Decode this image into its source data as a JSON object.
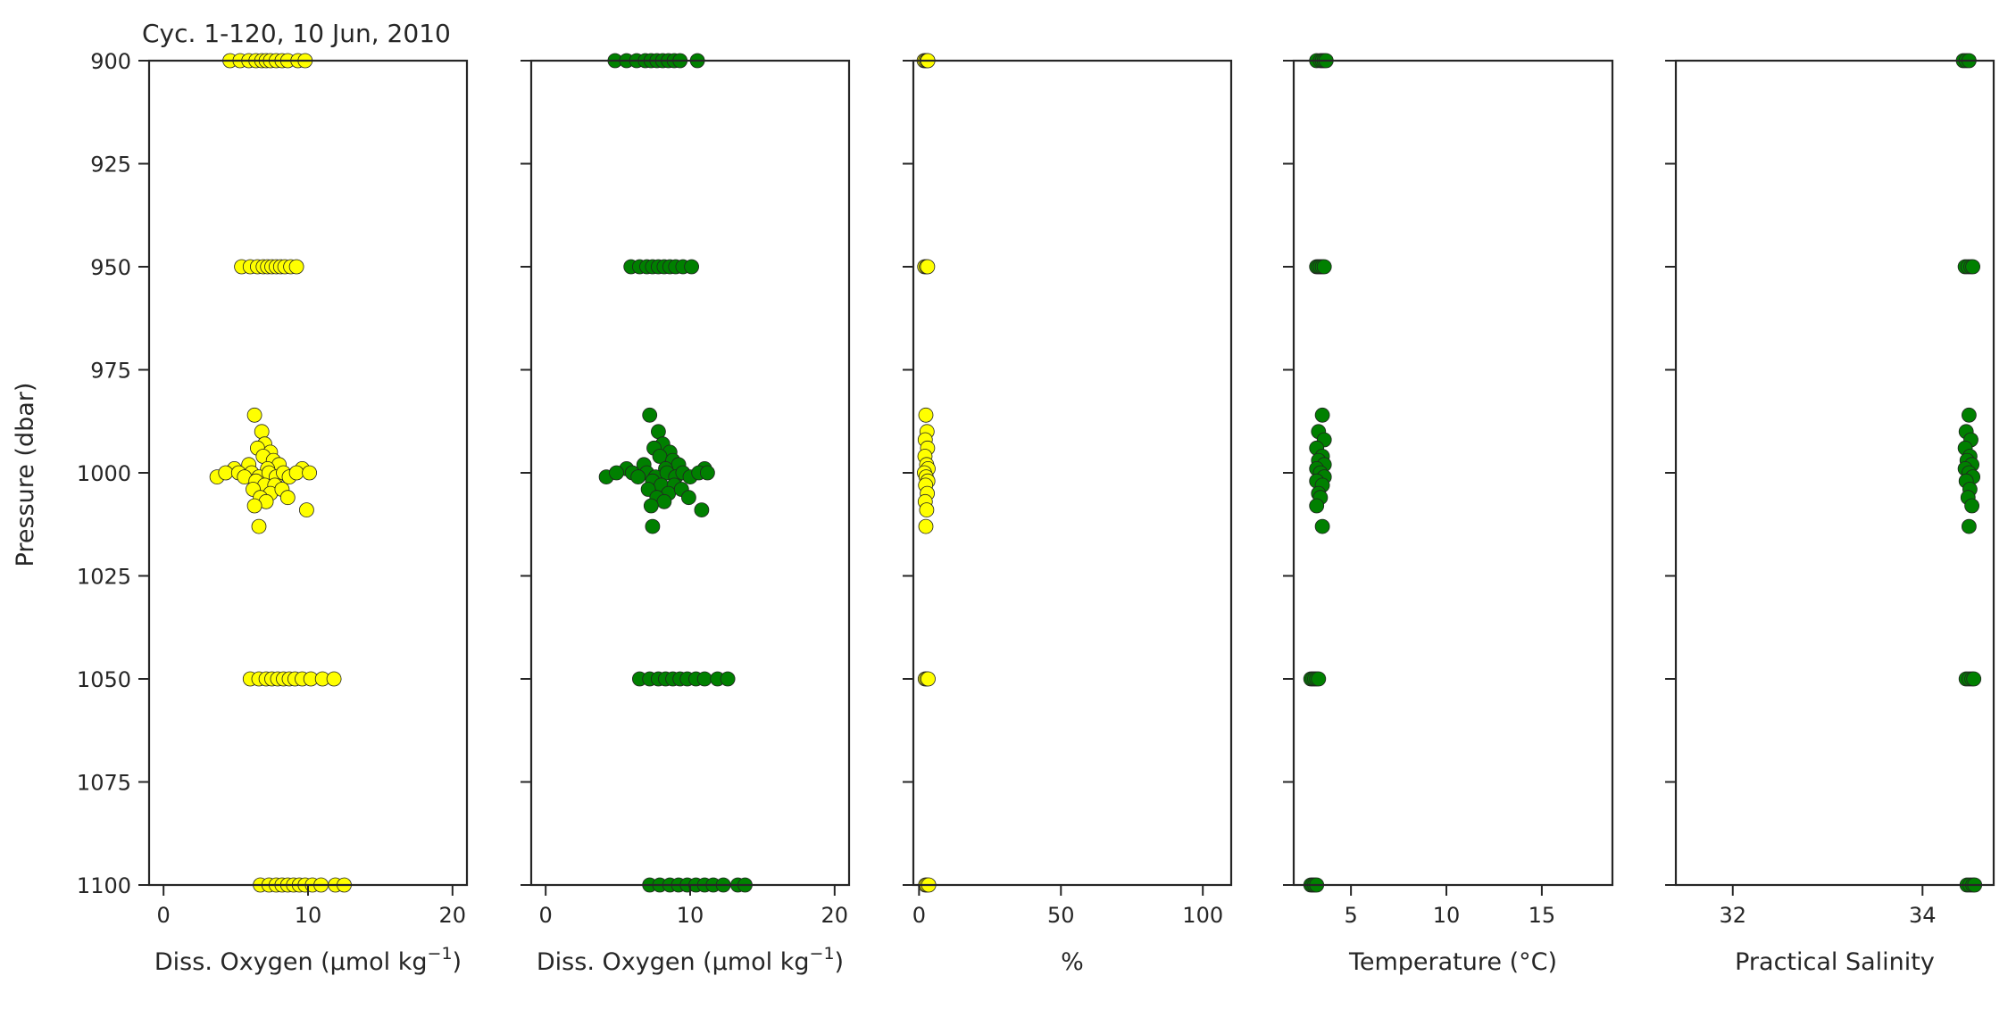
{
  "chart_data": {
    "type": "scatter",
    "title": "Cyc. 1-120, 10 Jun, 2010",
    "shared_y": {
      "label": "Pressure (dbar)",
      "lim": [
        900,
        1100
      ],
      "inverted": true,
      "ticks": [
        900,
        925,
        950,
        975,
        1000,
        1025,
        1050,
        1075,
        1100
      ]
    },
    "colors": {
      "yellow": "#ffff00",
      "green": "#008000",
      "edge": "#222222",
      "axis": "#262626"
    },
    "panels": [
      {
        "id": "doxy_raw",
        "xlabel": "Diss. Oxygen (μmol kg",
        "xlabel_sup": "−1",
        "xlabel_close": ")",
        "xlim": [
          -1,
          21
        ],
        "xticks": [
          0,
          10,
          20
        ],
        "tick_labels": [
          "0",
          "10",
          "20"
        ],
        "color": "yellow",
        "clusters": [
          {
            "p": 900,
            "x": [
              4.6,
              5.3,
              5.9,
              6.4,
              6.8,
              7.1,
              7.4,
              7.8,
              8.2,
              8.6,
              9.3,
              9.8
            ]
          },
          {
            "p": 950,
            "x": [
              5.4,
              6.0,
              6.5,
              6.9,
              7.2,
              7.5,
              7.8,
              8.1,
              8.4,
              8.8,
              9.2
            ]
          },
          {
            "p": 1050,
            "x": [
              6.0,
              6.6,
              7.1,
              7.5,
              7.9,
              8.3,
              8.7,
              9.1,
              9.6,
              10.2,
              11.0,
              11.8
            ]
          },
          {
            "p": 1100,
            "x": [
              6.7,
              7.3,
              7.8,
              8.2,
              8.6,
              9.0,
              9.4,
              9.8,
              10.3,
              10.9,
              11.9,
              12.5
            ]
          }
        ],
        "points": [
          {
            "x": 6.3,
            "p": 986
          },
          {
            "x": 6.8,
            "p": 990
          },
          {
            "x": 7.0,
            "p": 993
          },
          {
            "x": 6.5,
            "p": 994
          },
          {
            "x": 7.4,
            "p": 995
          },
          {
            "x": 6.9,
            "p": 996
          },
          {
            "x": 7.6,
            "p": 997
          },
          {
            "x": 8.0,
            "p": 998
          },
          {
            "x": 5.9,
            "p": 998
          },
          {
            "x": 7.2,
            "p": 999
          },
          {
            "x": 4.9,
            "p": 999
          },
          {
            "x": 9.6,
            "p": 999
          },
          {
            "x": 3.7,
            "p": 1001
          },
          {
            "x": 4.3,
            "p": 1000
          },
          {
            "x": 5.2,
            "p": 1000
          },
          {
            "x": 6.1,
            "p": 1000
          },
          {
            "x": 6.6,
            "p": 1001
          },
          {
            "x": 7.3,
            "p": 1000
          },
          {
            "x": 7.8,
            "p": 1001
          },
          {
            "x": 8.3,
            "p": 1000
          },
          {
            "x": 8.7,
            "p": 1001
          },
          {
            "x": 9.2,
            "p": 1000
          },
          {
            "x": 10.1,
            "p": 1000
          },
          {
            "x": 5.6,
            "p": 1001
          },
          {
            "x": 6.4,
            "p": 1002
          },
          {
            "x": 7.0,
            "p": 1003
          },
          {
            "x": 7.7,
            "p": 1003
          },
          {
            "x": 6.2,
            "p": 1004
          },
          {
            "x": 7.4,
            "p": 1005
          },
          {
            "x": 8.2,
            "p": 1004
          },
          {
            "x": 6.7,
            "p": 1006
          },
          {
            "x": 7.1,
            "p": 1007
          },
          {
            "x": 8.6,
            "p": 1006
          },
          {
            "x": 6.3,
            "p": 1008
          },
          {
            "x": 9.9,
            "p": 1009
          },
          {
            "x": 6.6,
            "p": 1013
          }
        ]
      },
      {
        "id": "doxy_adjusted",
        "xlabel": "Diss. Oxygen (μmol kg",
        "xlabel_sup": "−1",
        "xlabel_close": ")",
        "xlim": [
          -1,
          21
        ],
        "xticks": [
          0,
          10,
          20
        ],
        "tick_labels": [
          "0",
          "10",
          "20"
        ],
        "color": "green",
        "clusters": [
          {
            "p": 900,
            "x": [
              4.8,
              5.6,
              6.3,
              6.9,
              7.3,
              7.7,
              8.1,
              8.5,
              8.9,
              9.3,
              10.5
            ]
          },
          {
            "p": 950,
            "x": [
              5.9,
              6.5,
              7.0,
              7.4,
              7.8,
              8.2,
              8.6,
              9.0,
              9.5,
              10.1
            ]
          },
          {
            "p": 1050,
            "x": [
              6.5,
              7.2,
              7.8,
              8.3,
              8.8,
              9.3,
              9.8,
              10.4,
              11.0,
              11.9,
              12.6
            ]
          },
          {
            "p": 1100,
            "x": [
              7.2,
              7.9,
              8.6,
              9.2,
              9.8,
              10.4,
              11.0,
              11.6,
              12.3,
              13.3,
              13.8
            ]
          }
        ],
        "points": [
          {
            "x": 7.2,
            "p": 986
          },
          {
            "x": 7.8,
            "p": 990
          },
          {
            "x": 8.1,
            "p": 993
          },
          {
            "x": 7.5,
            "p": 994
          },
          {
            "x": 8.6,
            "p": 995
          },
          {
            "x": 7.9,
            "p": 996
          },
          {
            "x": 8.8,
            "p": 997
          },
          {
            "x": 9.2,
            "p": 998
          },
          {
            "x": 6.8,
            "p": 998
          },
          {
            "x": 8.3,
            "p": 999
          },
          {
            "x": 5.6,
            "p": 999
          },
          {
            "x": 11.0,
            "p": 999
          },
          {
            "x": 4.2,
            "p": 1001
          },
          {
            "x": 4.9,
            "p": 1000
          },
          {
            "x": 6.0,
            "p": 1000
          },
          {
            "x": 7.0,
            "p": 1000
          },
          {
            "x": 7.6,
            "p": 1001
          },
          {
            "x": 8.4,
            "p": 1000
          },
          {
            "x": 9.0,
            "p": 1001
          },
          {
            "x": 9.5,
            "p": 1000
          },
          {
            "x": 10.0,
            "p": 1001
          },
          {
            "x": 10.6,
            "p": 1000
          },
          {
            "x": 11.2,
            "p": 1000
          },
          {
            "x": 6.4,
            "p": 1001
          },
          {
            "x": 7.4,
            "p": 1002
          },
          {
            "x": 8.0,
            "p": 1003
          },
          {
            "x": 8.9,
            "p": 1003
          },
          {
            "x": 7.1,
            "p": 1004
          },
          {
            "x": 8.5,
            "p": 1005
          },
          {
            "x": 9.4,
            "p": 1004
          },
          {
            "x": 7.7,
            "p": 1006
          },
          {
            "x": 8.2,
            "p": 1007
          },
          {
            "x": 9.9,
            "p": 1006
          },
          {
            "x": 7.3,
            "p": 1008
          },
          {
            "x": 10.8,
            "p": 1009
          },
          {
            "x": 7.4,
            "p": 1013
          }
        ]
      },
      {
        "id": "oxygen_saturation",
        "xlabel": "%",
        "xlim": [
          -2,
          110
        ],
        "xticks": [
          0,
          50,
          100
        ],
        "tick_labels": [
          "0",
          "50",
          "100"
        ],
        "color": "yellow",
        "clusters": [
          {
            "p": 900,
            "x": [
              1.8,
              2.3,
              2.8,
              3.1
            ]
          },
          {
            "p": 950,
            "x": [
              2.0,
              2.6,
              3.0
            ]
          },
          {
            "p": 1050,
            "x": [
              2.2,
              2.7,
              3.2
            ]
          },
          {
            "p": 1100,
            "x": [
              2.3,
              2.8,
              3.4
            ]
          }
        ],
        "points": [
          {
            "x": 2.4,
            "p": 986
          },
          {
            "x": 2.8,
            "p": 990
          },
          {
            "x": 2.2,
            "p": 992
          },
          {
            "x": 3.0,
            "p": 994
          },
          {
            "x": 2.1,
            "p": 996
          },
          {
            "x": 2.7,
            "p": 998
          },
          {
            "x": 3.2,
            "p": 999
          },
          {
            "x": 1.9,
            "p": 1000
          },
          {
            "x": 2.5,
            "p": 1001
          },
          {
            "x": 3.1,
            "p": 1002
          },
          {
            "x": 2.3,
            "p": 1003
          },
          {
            "x": 2.9,
            "p": 1005
          },
          {
            "x": 2.2,
            "p": 1007
          },
          {
            "x": 2.7,
            "p": 1009
          },
          {
            "x": 2.4,
            "p": 1013
          }
        ]
      },
      {
        "id": "temperature",
        "xlabel": "Temperature (°C)",
        "xlim": [
          2,
          18.7
        ],
        "xticks": [
          5,
          10,
          15
        ],
        "tick_labels": [
          "5",
          "10",
          "15"
        ],
        "color": "green",
        "clusters": [
          {
            "p": 900,
            "x": [
              3.2,
              3.4,
              3.5,
              3.6,
              3.7
            ]
          },
          {
            "p": 950,
            "x": [
              3.2,
              3.3,
              3.4,
              3.5,
              3.6
            ]
          },
          {
            "p": 1050,
            "x": [
              2.9,
              3.0,
              3.1,
              3.2,
              3.3
            ]
          },
          {
            "p": 1100,
            "x": [
              2.9,
              3.0,
              3.1,
              3.2
            ]
          }
        ],
        "points": [
          {
            "x": 3.5,
            "p": 986
          },
          {
            "x": 3.3,
            "p": 990
          },
          {
            "x": 3.6,
            "p": 992
          },
          {
            "x": 3.2,
            "p": 994
          },
          {
            "x": 3.5,
            "p": 996
          },
          {
            "x": 3.3,
            "p": 997
          },
          {
            "x": 3.6,
            "p": 998
          },
          {
            "x": 3.2,
            "p": 999
          },
          {
            "x": 3.4,
            "p": 1000
          },
          {
            "x": 3.6,
            "p": 1001
          },
          {
            "x": 3.2,
            "p": 1002
          },
          {
            "x": 3.5,
            "p": 1003
          },
          {
            "x": 3.3,
            "p": 1005
          },
          {
            "x": 3.4,
            "p": 1006
          },
          {
            "x": 3.2,
            "p": 1008
          },
          {
            "x": 3.5,
            "p": 1013
          }
        ]
      },
      {
        "id": "salinity",
        "xlabel": "Practical Salinity",
        "xlim": [
          31.4,
          34.75
        ],
        "xticks": [
          32,
          34
        ],
        "tick_labels": [
          "32",
          "34"
        ],
        "color": "green",
        "clusters": [
          {
            "p": 900,
            "x": [
              34.43,
              34.46,
              34.49
            ]
          },
          {
            "p": 950,
            "x": [
              34.45,
              34.48,
              34.51,
              34.53
            ]
          },
          {
            "p": 1050,
            "x": [
              34.46,
              34.49,
              34.52,
              34.54
            ]
          },
          {
            "p": 1100,
            "x": [
              34.47,
              34.5,
              34.53,
              34.55
            ]
          }
        ],
        "points": [
          {
            "x": 34.49,
            "p": 986
          },
          {
            "x": 34.46,
            "p": 990
          },
          {
            "x": 34.51,
            "p": 992
          },
          {
            "x": 34.45,
            "p": 994
          },
          {
            "x": 34.5,
            "p": 996
          },
          {
            "x": 34.47,
            "p": 997
          },
          {
            "x": 34.52,
            "p": 998
          },
          {
            "x": 34.45,
            "p": 999
          },
          {
            "x": 34.49,
            "p": 1000
          },
          {
            "x": 34.53,
            "p": 1001
          },
          {
            "x": 34.46,
            "p": 1002
          },
          {
            "x": 34.5,
            "p": 1004
          },
          {
            "x": 34.48,
            "p": 1006
          },
          {
            "x": 34.52,
            "p": 1008
          },
          {
            "x": 34.49,
            "p": 1013
          }
        ]
      }
    ]
  }
}
